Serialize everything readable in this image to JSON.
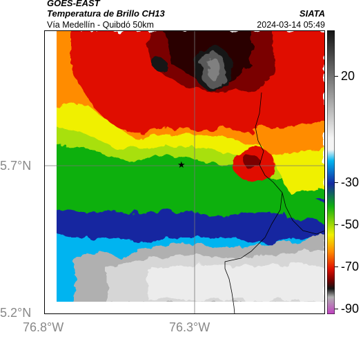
{
  "header": {
    "satellite": "GOES-EAST",
    "product": "Temperatura de Brillo CH13",
    "organization": "SIATA",
    "location": "Vía Medellín - Quibdó 50km",
    "timestamp": "2024-03-14 05:49"
  },
  "map": {
    "lat_labels": [
      "5.7°N",
      "5.2°N"
    ],
    "lon_labels": [
      "76.8°W",
      "76.3°W"
    ],
    "marker_icon": "star-icon"
  },
  "colorbar": {
    "ticks": [
      "20",
      "-30",
      "-50",
      "-70",
      "-90"
    ],
    "colors": {
      "white": "#f4f4f4",
      "gray": "#b0b0b0",
      "cyan": "#00b4f0",
      "blue": "#1428a0",
      "green": "#10b010",
      "yellow": "#f0f000",
      "orange": "#ff8c00",
      "red": "#e01000",
      "darkred": "#7a0000",
      "black": "#141414",
      "magenta": "#c040c0"
    }
  }
}
